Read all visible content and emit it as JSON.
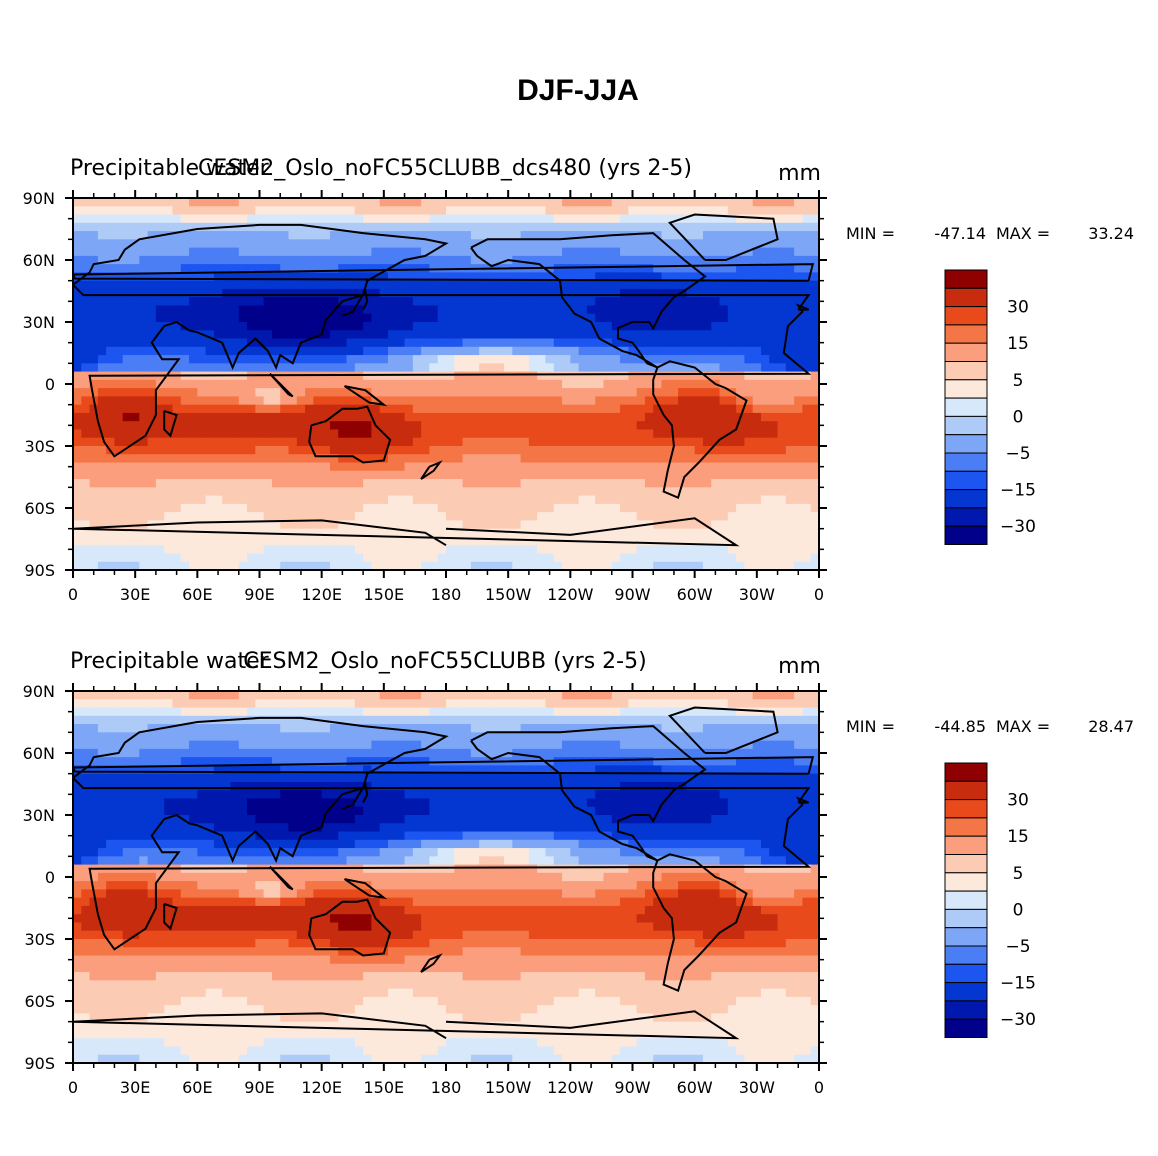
{
  "figure_title": "DJF-JJA",
  "palette": [
    "#00008b",
    "#0018ad",
    "#0436d2",
    "#1c55f0",
    "#4b7ef5",
    "#7ea6f7",
    "#aecbf8",
    "#d8e8fb",
    "#fde8dc",
    "#fccbb3",
    "#fb9e7e",
    "#f47647",
    "#e84a1c",
    "#c72c0e",
    "#8f0000"
  ],
  "chart_data": [
    {
      "type": "heatmap",
      "left_title": "Precipitable water",
      "center_title": "CESM2_Oslo_noFC55CLUBB_dcs480 (yrs 2-5)",
      "units": "mm",
      "min_label": "MIN =",
      "min_value": "-47.14",
      "max_label": "MAX =",
      "max_value": "33.24",
      "lon_ticks": [
        "0",
        "30E",
        "60E",
        "90E",
        "120E",
        "150E",
        "180",
        "150W",
        "120W",
        "90W",
        "60W",
        "30W",
        "0"
      ],
      "lat_ticks": [
        "90N",
        "60N",
        "30N",
        "0",
        "30S",
        "60S",
        "90S"
      ],
      "xlim": [
        0,
        360
      ],
      "ylim": [
        -90,
        90
      ],
      "colorbar_levels": [
        -40,
        -30,
        -20,
        -15,
        -10,
        -5,
        -2,
        0,
        2,
        5,
        10,
        15,
        20,
        30,
        40
      ],
      "colorbar_labels": [
        "30",
        "15",
        "5",
        "0",
        "−5",
        "−15",
        "−30"
      ]
    },
    {
      "type": "heatmap",
      "left_title": "Precipitable water",
      "center_title": "CESM2_Oslo_noFC55CLUBB (yrs 2-5)",
      "units": "mm",
      "min_label": "MIN =",
      "min_value": "-44.85",
      "max_label": "MAX =",
      "max_value": "28.47",
      "lon_ticks": [
        "0",
        "30E",
        "60E",
        "90E",
        "120E",
        "150E",
        "180",
        "150W",
        "120W",
        "90W",
        "60W",
        "30W",
        "0"
      ],
      "lat_ticks": [
        "90N",
        "60N",
        "30N",
        "0",
        "30S",
        "60S",
        "90S"
      ],
      "xlim": [
        0,
        360
      ],
      "ylim": [
        -90,
        90
      ],
      "colorbar_levels": [
        -40,
        -30,
        -20,
        -15,
        -10,
        -5,
        -2,
        0,
        2,
        5,
        10,
        15,
        20,
        30,
        40
      ],
      "colorbar_labels": [
        "30",
        "15",
        "5",
        "0",
        "−5",
        "−15",
        "−30"
      ]
    }
  ]
}
